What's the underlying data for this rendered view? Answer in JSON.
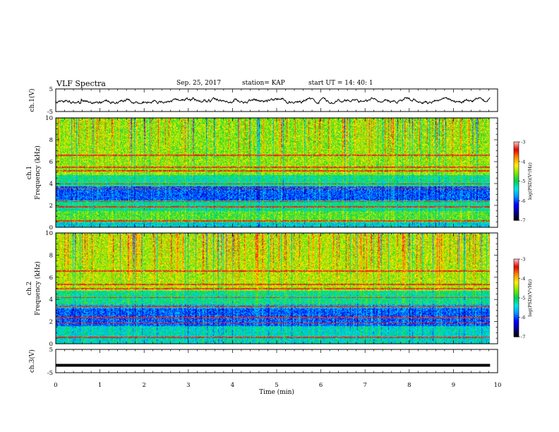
{
  "header": {
    "title": "VLF Spectra",
    "date": "Sep. 25, 2017",
    "station": "station= KAP",
    "start_ut": "start  UT  =   14: 40: 1"
  },
  "chart_data": [
    {
      "type": "line",
      "panel": "ch1-waveform",
      "ylabel": "ch.1(V)",
      "x_range_min": [
        0,
        9.83
      ],
      "ylim": [
        -5,
        5
      ],
      "yticks": [
        "5",
        "-5"
      ],
      "description_free": true,
      "approx_range_v": [
        -1.5,
        1.2
      ],
      "baseline_v": -0.2
    },
    {
      "type": "heatmap",
      "panel": "ch1-spectrogram",
      "ylabel_top": "ch.1",
      "ylabel": "Frequency  (kHz)",
      "ylim": [
        0,
        10
      ],
      "yticks": [
        "0",
        "2",
        "4",
        "6",
        "8",
        "10"
      ],
      "colorbar": {
        "label": "log(PSD)(V²/Hz)",
        "ticks": [
          "-3",
          "-4",
          "-5",
          "-6",
          "-7"
        ],
        "range": [
          -7,
          -3
        ]
      },
      "bands_khz": [
        {
          "from": 0.0,
          "to": 0.5,
          "level": -5.5
        },
        {
          "from": 0.5,
          "to": 1.5,
          "level": -4.8
        },
        {
          "from": 1.5,
          "to": 2.5,
          "level": -5.2
        },
        {
          "from": 2.5,
          "to": 3.8,
          "level": -6.0
        },
        {
          "from": 3.8,
          "to": 4.8,
          "level": -5.2
        },
        {
          "from": 4.8,
          "to": 10.0,
          "level": -4.6
        }
      ],
      "lines_khz": [
        0.6,
        1.9,
        2.4,
        3.6,
        4.0,
        5.2,
        5.5,
        6.6
      ]
    },
    {
      "type": "heatmap",
      "panel": "ch2-spectrogram",
      "ylabel_top": "ch.2",
      "ylabel": "Frequency  (kHz)",
      "ylim": [
        0,
        10
      ],
      "yticks": [
        "0",
        "2",
        "4",
        "6",
        "8",
        "10"
      ],
      "colorbar": {
        "label": "log(PSD)(V²/Hz)",
        "ticks": [
          "-3",
          "-4",
          "-5",
          "-6",
          "-7"
        ],
        "range": [
          -7,
          -3
        ]
      },
      "bands_khz": [
        {
          "from": 0.0,
          "to": 0.6,
          "level": -5.4
        },
        {
          "from": 0.6,
          "to": 1.6,
          "level": -5.4
        },
        {
          "from": 1.6,
          "to": 3.2,
          "level": -6.0
        },
        {
          "from": 3.2,
          "to": 3.6,
          "level": -5.6
        },
        {
          "from": 3.6,
          "to": 4.8,
          "level": -5.2
        },
        {
          "from": 4.8,
          "to": 10.0,
          "level": -4.5
        }
      ],
      "lines_khz": [
        0.6,
        1.9,
        2.4,
        3.4,
        4.2,
        5.0,
        5.4,
        6.6
      ]
    },
    {
      "type": "line",
      "panel": "ch3-waveform",
      "ylabel": "ch.3(V)",
      "ylim": [
        -5,
        5
      ],
      "yticks": [
        "5",
        "-5"
      ],
      "constant_v": -1.8
    }
  ],
  "xaxis": {
    "label": "Time  (min)",
    "ticks": [
      "0",
      "1",
      "2",
      "3",
      "4",
      "5",
      "6",
      "7",
      "8",
      "9",
      "10"
    ],
    "xlim": [
      0,
      10
    ],
    "data_end": 9.83
  }
}
